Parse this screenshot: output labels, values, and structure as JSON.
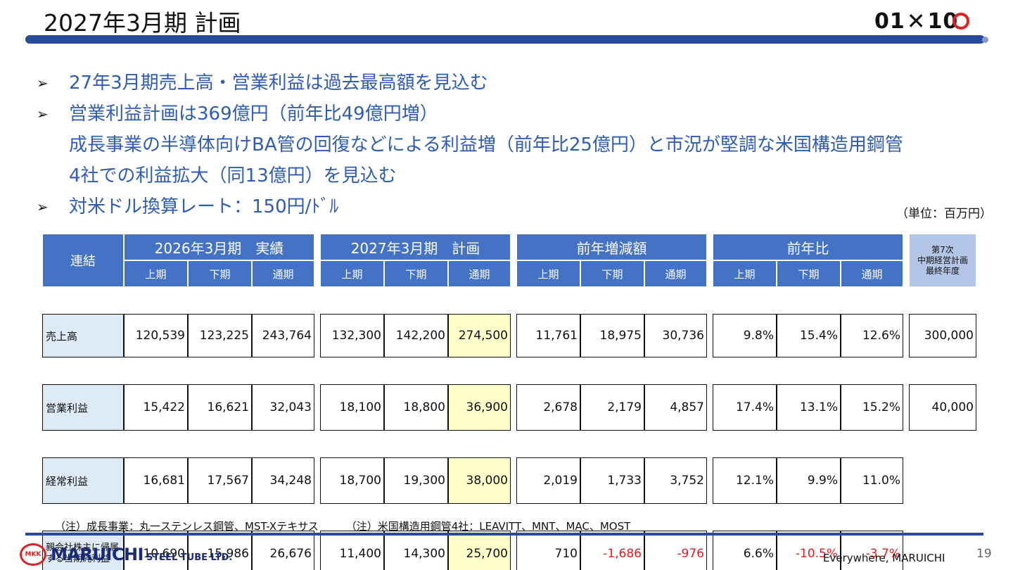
{
  "header": {
    "title": "2027年3月期 計画",
    "logo_left": "01",
    "logo_x": "✕",
    "logo_right": "10"
  },
  "bullets": [
    {
      "text": "27年3月期売上高・営業利益は過去最高額を見込む"
    },
    {
      "text": "営業利益計画は369億円（前年比49億円増）"
    },
    {
      "text": "成長事業の半導体向けBA管の回復などによる利益増（前年比25億円）と市況が堅調な米国構造用鋼管"
    },
    {
      "text": "4社での利益拡大（同13億円）を見込む"
    },
    {
      "text": "対米ドル換算レート：150円/ﾄﾞﾙ"
    }
  ],
  "bullet_marker": "➢",
  "unit_label": "（単位：百万円）",
  "table": {
    "corner_label": "連結",
    "groups": [
      "2026年3月期　実績",
      "2027年3月期　計画",
      "前年増減額",
      "前年比"
    ],
    "extra_header": "第7次\n中期経営計画\n最終年度",
    "subheaders": [
      "上期",
      "下期",
      "通期"
    ],
    "rows": [
      {
        "label": "売上高",
        "actual": [
          "120,539",
          "123,225",
          "243,764"
        ],
        "plan": [
          "132,300",
          "142,200",
          "274,500"
        ],
        "diff": [
          "11,761",
          "18,975",
          "30,736"
        ],
        "ratio": [
          "9.8%",
          "15.4%",
          "12.6%"
        ],
        "mtp": "300,000"
      },
      {
        "label": "営業利益",
        "actual": [
          "15,422",
          "16,621",
          "32,043"
        ],
        "plan": [
          "18,100",
          "18,800",
          "36,900"
        ],
        "diff": [
          "2,678",
          "2,179",
          "4,857"
        ],
        "ratio": [
          "17.4%",
          "13.1%",
          "15.2%"
        ],
        "mtp": "40,000"
      },
      {
        "label": "経常利益",
        "actual": [
          "16,681",
          "17,567",
          "34,248"
        ],
        "plan": [
          "18,700",
          "19,300",
          "38,000"
        ],
        "diff": [
          "2,019",
          "1,733",
          "3,752"
        ],
        "ratio": [
          "12.1%",
          "9.9%",
          "11.0%"
        ],
        "mtp": ""
      },
      {
        "label": "親会社株主に帰属\nする当期純利益",
        "actual": [
          "10,690",
          "15,986",
          "26,676"
        ],
        "plan": [
          "11,400",
          "14,300",
          "25,700"
        ],
        "diff": [
          "710",
          "-1,686",
          "-976"
        ],
        "ratio": [
          "6.6%",
          "-10.5%",
          "-3.7%"
        ],
        "mtp": ""
      }
    ]
  },
  "notes": [
    "（注）成長事業：丸一ステンレス鋼管、MST-Xテキサス",
    "（注）米国構造用鋼管4社：LEAVITT、MNT、MAC、MOST"
  ],
  "footer": {
    "company_mark": "MKK",
    "company_name": "MARUICHI",
    "company_sub": "STEEL TUBE LTD.",
    "tagline": "Everywhere, MARUICHI",
    "page_number": "19"
  },
  "colors": {
    "accent_blue": "#4472c4",
    "dark_blue": "#2a4a9a",
    "bullet_text": "#2e5cb8",
    "highlight": "#ffffcc",
    "negative": "#e02020"
  }
}
